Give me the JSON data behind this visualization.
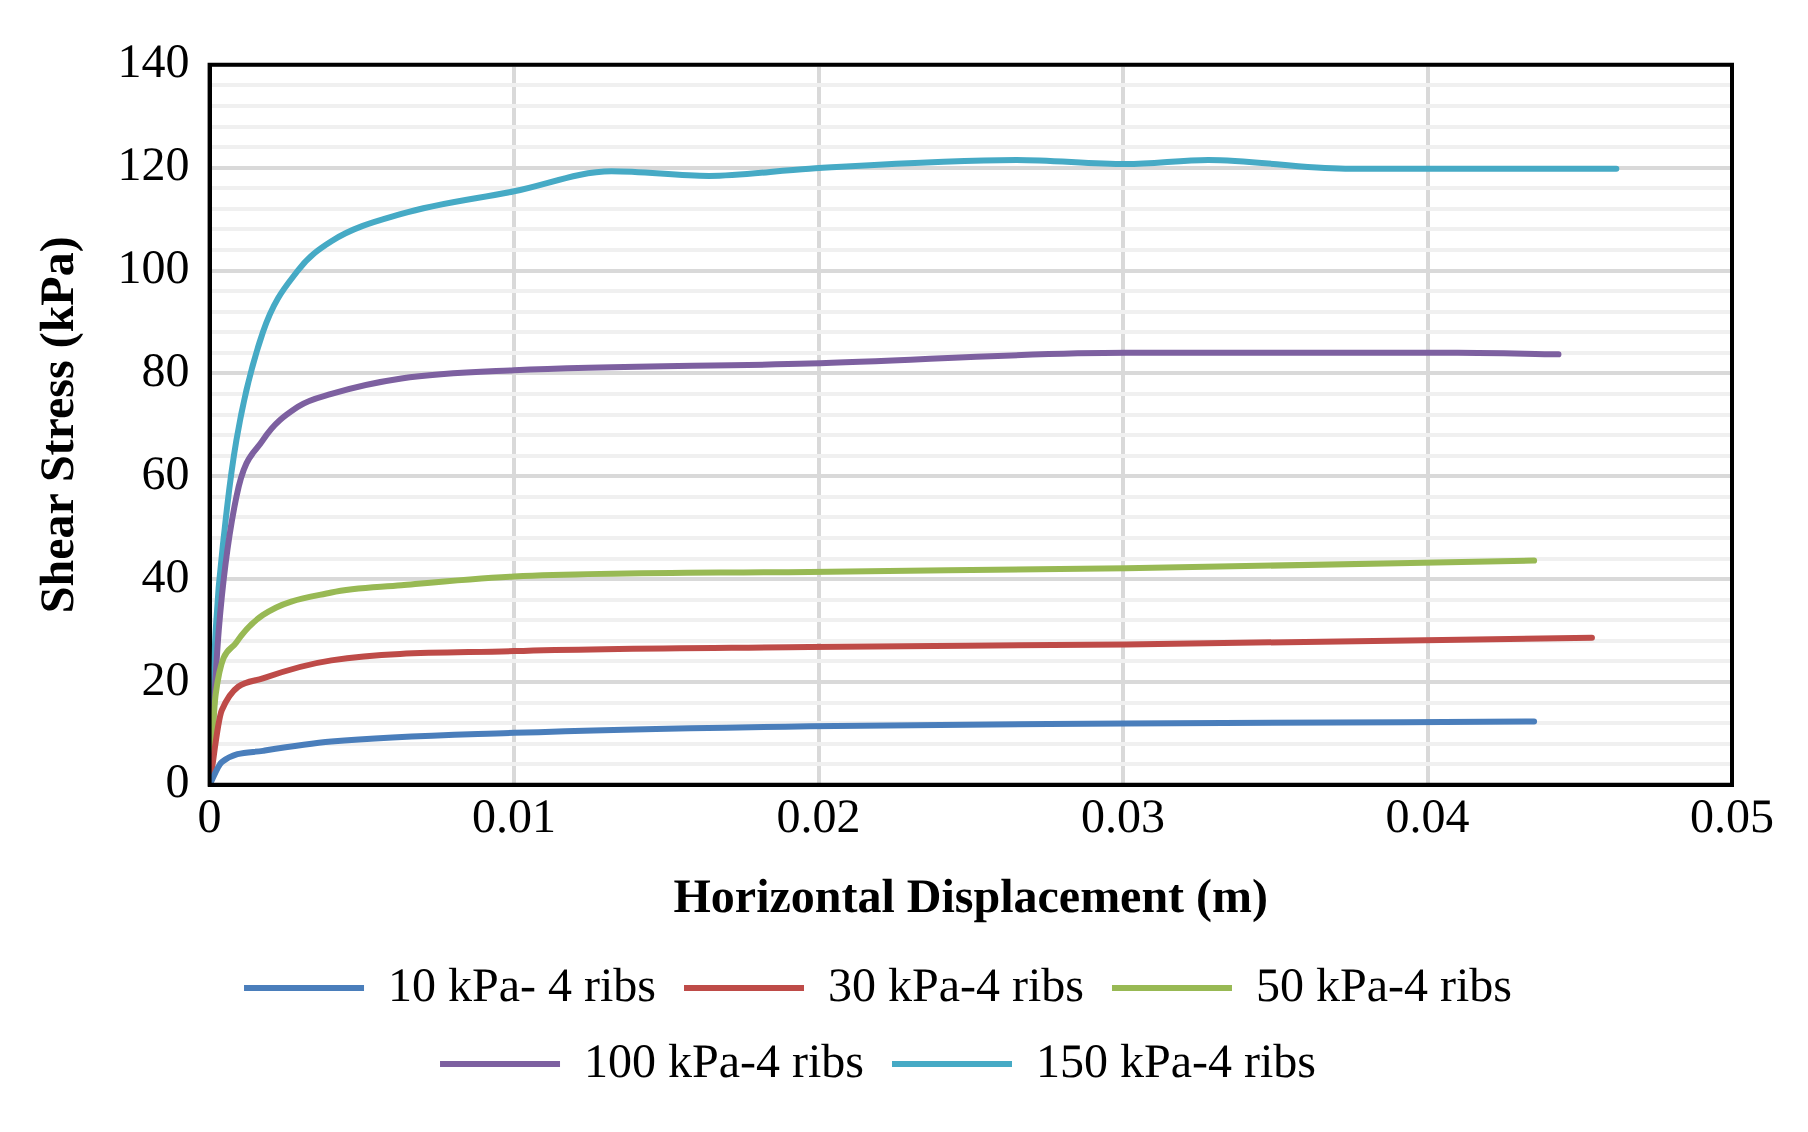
{
  "chart_data": {
    "type": "line",
    "xlabel": "Horizontal Displacement (m)",
    "ylabel": "Shear Stress (kPa)",
    "xlim": [
      0,
      0.05
    ],
    "xticks": [
      0,
      0.01,
      0.02,
      0.03,
      0.04,
      0.05
    ],
    "ylim": [
      0,
      140
    ],
    "yticks": [
      0,
      {
        "value": 4,
        "label": null
      },
      {
        "value": 8,
        "label": null
      },
      {
        "value": 12,
        "label": null
      },
      {
        "value": 16,
        "label": null
      },
      20,
      {
        "value": 24,
        "label": null
      },
      {
        "value": 28,
        "label": null
      },
      {
        "value": 32,
        "label": null
      },
      {
        "value": 36,
        "label": null
      },
      40,
      {
        "value": 44,
        "label": null
      },
      {
        "value": 48,
        "label": null
      },
      {
        "value": 52,
        "label": null
      },
      {
        "value": 56,
        "label": null
      },
      60,
      {
        "value": 64,
        "label": null
      },
      {
        "value": 68,
        "label": null
      },
      {
        "value": 72,
        "label": null
      },
      {
        "value": 76,
        "label": null
      },
      80,
      {
        "value": 84,
        "label": null
      },
      {
        "value": 88,
        "label": null
      },
      {
        "value": 92,
        "label": null
      },
      {
        "value": 96,
        "label": null
      },
      100,
      {
        "value": 104,
        "label": null
      },
      {
        "value": 108,
        "label": null
      },
      {
        "value": 112,
        "label": null
      },
      {
        "value": 116,
        "label": null
      },
      120,
      {
        "value": 124,
        "label": null
      },
      {
        "value": 128,
        "label": null
      },
      {
        "value": 132,
        "label": null
      },
      {
        "value": 136,
        "label": null
      },
      140
    ],
    "grid": true,
    "legend": "bottom",
    "marker": "none",
    "line_style": "solid",
    "series": [
      {
        "name": "10 kPa- 4 ribs",
        "color": "#4a7ebb",
        "x": [
          0,
          0.0004,
          0.00175,
          0.004,
          0.01,
          0.0197,
          0.0301,
          0.0435
        ],
        "values": [
          0,
          4.4,
          6.6,
          8.4,
          10.1,
          11.4,
          11.9,
          12.3
        ]
      },
      {
        "name": "30 kPa-4 ribs",
        "color": "#be4b48",
        "x": [
          0,
          0.0004,
          0.00175,
          0.004,
          0.01,
          0.0197,
          0.0301,
          0.0454
        ],
        "values": [
          0,
          14.5,
          20.7,
          24.2,
          26,
          26.8,
          27.3,
          28.6
        ]
      },
      {
        "name": "50 kPa-4 ribs",
        "color": "#98b954",
        "x": [
          0,
          0.0002,
          0.00088,
          0.00175,
          0.004,
          0.0063,
          0.01,
          0.0197,
          0.0301,
          0.0435
        ],
        "values": [
          0,
          17.6,
          27.7,
          33,
          37.4,
          38.8,
          40.5,
          41.4,
          42.1,
          43.6
        ]
      },
      {
        "name": "100 kPa-4 ribs",
        "color": "#7d60a0",
        "x": [
          0,
          0.0003,
          0.00088,
          0.00175,
          0.0029,
          0.004,
          0.0063,
          0.01,
          0.0197,
          0.0301,
          0.041,
          0.0443
        ],
        "values": [
          0,
          30,
          56,
          67,
          73.5,
          76,
          79,
          80.6,
          81.9,
          84,
          84,
          83.7
        ]
      },
      {
        "name": "150 kPa-4 ribs",
        "color": "#46aac5",
        "x": [
          0,
          0.0002,
          0.0005,
          0.00088,
          0.00175,
          0.0029,
          0.004,
          0.0063,
          0.01,
          0.0132,
          0.0164,
          0.0197,
          0.0265,
          0.0301,
          0.0328,
          0.0373,
          0.0462
        ],
        "values": [
          0,
          30,
          50,
          67,
          88,
          100,
          105.7,
          111,
          115.4,
          119.3,
          118.4,
          119.8,
          121.5,
          120.7,
          121.5,
          119.8,
          119.8
        ]
      }
    ]
  }
}
